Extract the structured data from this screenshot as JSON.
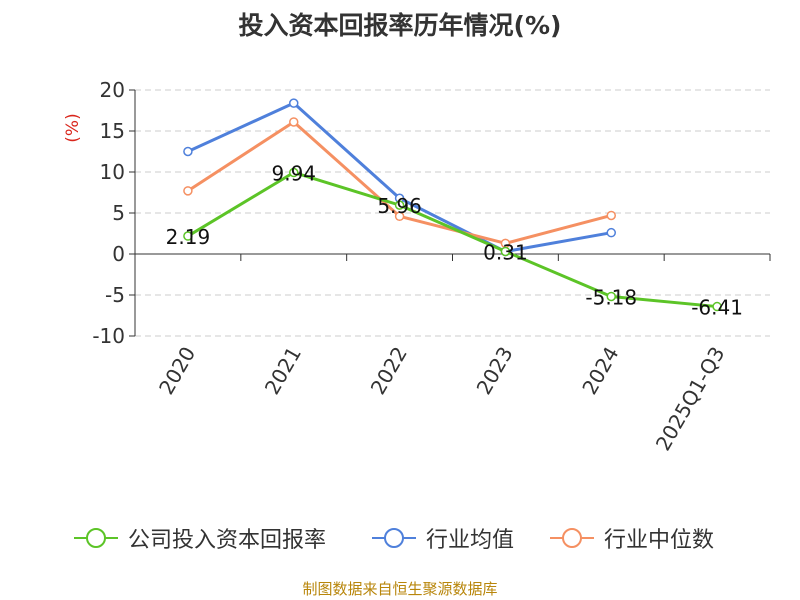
{
  "chart_data": {
    "type": "line",
    "title": "投入资本回报率历年情况(%)",
    "ylabel": "(%)",
    "ylim": [
      -10,
      20
    ],
    "yticks": [
      "20",
      "15",
      "10",
      "5",
      "0",
      "-5",
      "-10"
    ],
    "categories": [
      "2020",
      "2021",
      "2022",
      "2023",
      "2024",
      "2025Q1-Q3"
    ],
    "grid": true,
    "legend_position": "bottom",
    "series": [
      {
        "name": "公司投入资本回报率",
        "color": "#5cc427",
        "values": [
          2.19,
          9.94,
          5.96,
          0.31,
          -5.18,
          -6.41
        ],
        "labels": [
          "2.19",
          "9.94",
          "5.96",
          "0.31",
          "-5.18",
          "-6.41"
        ]
      },
      {
        "name": "行业均值",
        "color": "#4f80db",
        "values": [
          12.5,
          18.4,
          6.8,
          0.3,
          2.6,
          null
        ]
      },
      {
        "name": "行业中位数",
        "color": "#f59062",
        "values": [
          7.7,
          16.1,
          4.6,
          1.3,
          4.7,
          null
        ]
      }
    ]
  },
  "source": "制图数据来自恒生聚源数据库"
}
